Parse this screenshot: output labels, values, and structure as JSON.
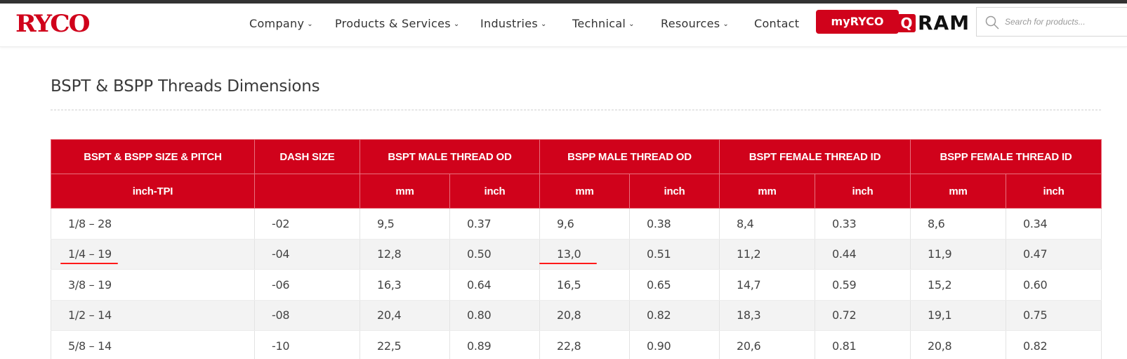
{
  "header": {
    "logo": "RYCO",
    "nav": [
      {
        "label": "Company",
        "has_dropdown": true
      },
      {
        "label": "Products & Services",
        "has_dropdown": true
      },
      {
        "label": "Industries",
        "has_dropdown": true
      },
      {
        "label": "Technical",
        "has_dropdown": true
      },
      {
        "label": "Resources",
        "has_dropdown": true
      },
      {
        "label": "Contact",
        "has_dropdown": false
      }
    ],
    "myryco_label": "myRYCO",
    "qram": {
      "q": "Q",
      "rest": "RAM"
    },
    "search": {
      "placeholder": "Search for products...",
      "value": "",
      "icon": "search-icon"
    }
  },
  "page": {
    "title": "BSPT & BSPP Threads Dimensions"
  },
  "table": {
    "groups": [
      "BSPT & BSPP SIZE & PITCH",
      "DASH SIZE",
      "BSPT MALE THREAD OD",
      "BSPP MALE THREAD OD",
      "BSPT FEMALE THREAD ID",
      "BSPP FEMALE THREAD ID"
    ],
    "units": [
      "inch-TPI",
      "",
      "mm",
      "inch",
      "mm",
      "inch",
      "mm",
      "inch",
      "mm",
      "inch"
    ],
    "rows": [
      [
        "1/8 – 28",
        "-02",
        "9,5",
        "0.37",
        "9,6",
        "0.38",
        "8,4",
        "0.33",
        "8,6",
        "0.34"
      ],
      [
        "1/4 – 19",
        "-04",
        "12,8",
        "0.50",
        "13,0",
        "0.51",
        "11,2",
        "0.44",
        "11,9",
        "0.47"
      ],
      [
        "3/8 – 19",
        "-06",
        "16,3",
        "0.64",
        "16,5",
        "0.65",
        "14,7",
        "0.59",
        "15,2",
        "0.60"
      ],
      [
        "1/2 – 14",
        "-08",
        "20,4",
        "0.80",
        "20,8",
        "0.82",
        "18,3",
        "0.72",
        "19,1",
        "0.75"
      ],
      [
        "5/8 – 14",
        "-10",
        "22,5",
        "0.89",
        "22,8",
        "0.90",
        "20,6",
        "0.81",
        "20,8",
        "0.82"
      ]
    ]
  },
  "colors": {
    "brand_red": "#d0021b",
    "annotation_red": "#ff1a1a"
  }
}
